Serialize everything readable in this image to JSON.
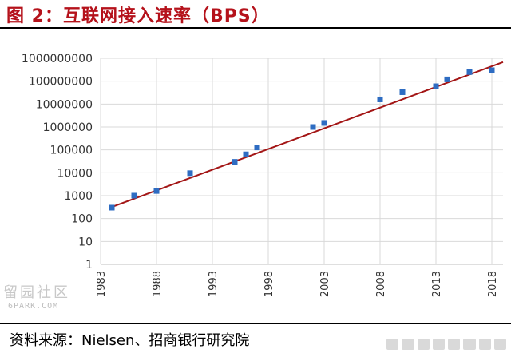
{
  "header": {
    "title": "图 2：互联网接入速率（BPS）"
  },
  "footer": {
    "source": "资料来源：Nielsen、招商银行研究院"
  },
  "watermark": {
    "text": "6PARK.COM"
  },
  "colors": {
    "title": "#b5121b",
    "points": "#2e6cc2",
    "trend": "#a31515",
    "grid": "#d9d9d9"
  },
  "chart_data": {
    "type": "scatter",
    "title": "",
    "xlabel": "",
    "ylabel": "",
    "yscale": "log",
    "xlim": [
      1983,
      2019
    ],
    "ylim": [
      1,
      1000000000
    ],
    "x_ticks": [
      "1983",
      "1988",
      "1993",
      "1998",
      "2003",
      "2008",
      "2013",
      "2018"
    ],
    "y_ticks": [
      "1",
      "10",
      "100",
      "1000",
      "10000",
      "100000",
      "1000000",
      "10000000",
      "100000000",
      "1000000000"
    ],
    "grid": true,
    "legend": "none",
    "series": [
      {
        "kind": "points",
        "x": [
          1984,
          1986,
          1988,
          1991,
          1995,
          1996,
          1997,
          2002,
          2003,
          2008,
          2010,
          2013,
          2014,
          2016,
          2018
        ],
        "y": [
          300,
          1000,
          1600,
          9600,
          30000,
          64000,
          128000,
          1000000,
          1500000,
          16000000,
          33000000,
          60000000,
          120000000,
          250000000,
          300000000
        ]
      },
      {
        "kind": "trendline",
        "x": [
          1984,
          2019
        ],
        "y": [
          320,
          680000000
        ]
      }
    ]
  }
}
